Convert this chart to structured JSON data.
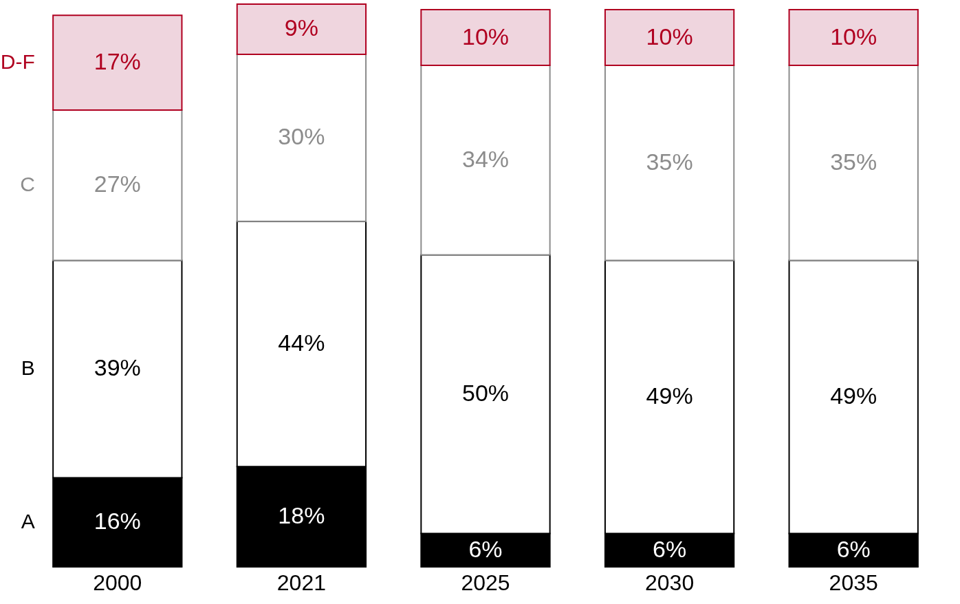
{
  "chart_data": {
    "type": "bar",
    "stacked": true,
    "categories": [
      "2000",
      "2021",
      "2025",
      "2030",
      "2035"
    ],
    "series": [
      {
        "name": "A",
        "color": "#000000",
        "values": [
          16,
          18,
          6,
          6,
          6
        ],
        "value_labels": [
          "16%",
          "18%",
          "6%",
          "6%",
          "6%"
        ]
      },
      {
        "name": "B",
        "color": "#000000",
        "values": [
          39,
          44,
          50,
          49,
          49
        ],
        "value_labels": [
          "39%",
          "44%",
          "50%",
          "49%",
          "49%"
        ]
      },
      {
        "name": "C",
        "color": "#8c8c8c",
        "values": [
          27,
          30,
          34,
          35,
          35
        ],
        "value_labels": [
          "27%",
          "30%",
          "34%",
          "35%",
          "35%"
        ]
      },
      {
        "name": "D-F",
        "color": "#b00020",
        "values": [
          17,
          9,
          10,
          10,
          10
        ],
        "value_labels": [
          "17%",
          "9%",
          "10%",
          "10%",
          "10%"
        ]
      }
    ]
  }
}
